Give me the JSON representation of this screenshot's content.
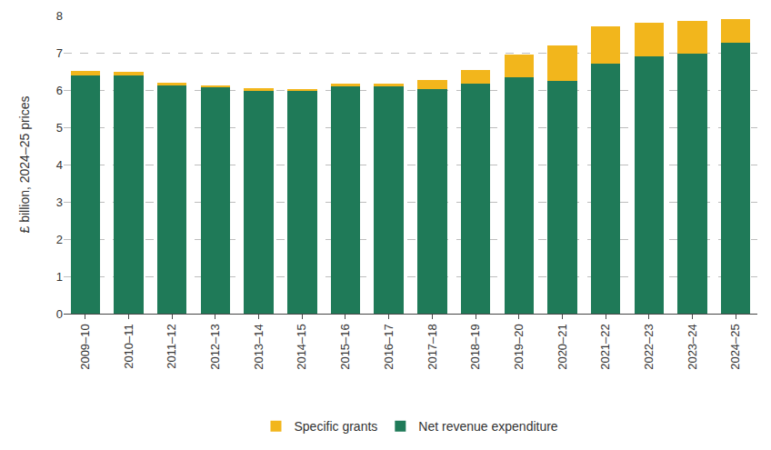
{
  "chart_data": {
    "type": "bar",
    "stacked": true,
    "y_label": "£ billion, 2024–25 prices",
    "categories": [
      "2009–10",
      "2010–11",
      "2011–12",
      "2012–13",
      "2013–14",
      "2014–15",
      "2015–16",
      "2016–17",
      "2017–18",
      "2018–19",
      "2019–20",
      "2020–21",
      "2021–22",
      "2022–23",
      "2023–24",
      "2024–25"
    ],
    "series": [
      {
        "name": "Net revenue expenditure",
        "color": "#1f7a58",
        "values": [
          6.4,
          6.38,
          6.13,
          6.07,
          5.98,
          5.97,
          6.1,
          6.1,
          6.02,
          6.16,
          6.34,
          6.25,
          6.7,
          6.9,
          6.98,
          7.27
        ]
      },
      {
        "name": "Specific grants",
        "color": "#f2b61c",
        "values": [
          0.12,
          0.1,
          0.06,
          0.04,
          0.07,
          0.06,
          0.06,
          0.08,
          0.25,
          0.38,
          0.62,
          0.95,
          1.0,
          0.9,
          0.87,
          0.63
        ]
      }
    ],
    "ylim": [
      0,
      8
    ],
    "yticks": [
      0,
      1,
      2,
      3,
      4,
      5,
      6,
      7,
      8
    ],
    "grid": true,
    "legend": "bottom"
  }
}
